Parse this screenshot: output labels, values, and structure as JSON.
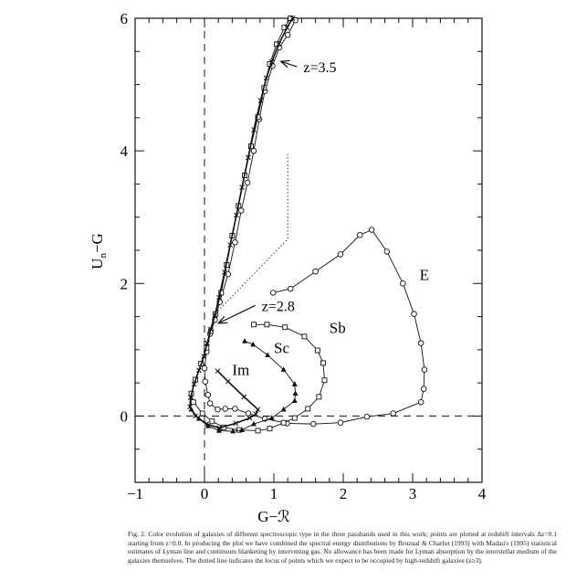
{
  "chart_data": {
    "type": "line",
    "xlabel": "G−ℛ",
    "ylabel_main": "U",
    "ylabel_sub": "n",
    "ylabel_rest": "−G",
    "xlim": [
      -1,
      4
    ],
    "ylim": [
      -1,
      6
    ],
    "x_ticks": [
      "-1",
      "0",
      "1",
      "2",
      "3",
      "4"
    ],
    "y_ticks": [
      "0",
      "2",
      "4",
      "6"
    ],
    "grid": false,
    "reference_lines": {
      "dashed_x": 0,
      "dashed_y": 0
    },
    "dotted_locus": [
      [
        0.16,
        1.55
      ],
      [
        1.2,
        2.67
      ],
      [
        1.2,
        3.95
      ]
    ],
    "series": [
      {
        "name": "E",
        "marker": "circle",
        "points": [
          [
            0.99,
            1.86
          ],
          [
            1.24,
            1.92
          ],
          [
            1.6,
            2.18
          ],
          [
            1.96,
            2.44
          ],
          [
            2.24,
            2.73
          ],
          [
            2.41,
            2.81
          ],
          [
            2.63,
            2.48
          ],
          [
            2.86,
            2.0
          ],
          [
            3.02,
            1.54
          ],
          [
            3.12,
            1.1
          ],
          [
            3.17,
            0.7
          ],
          [
            3.16,
            0.41
          ],
          [
            3.12,
            0.21
          ],
          [
            2.72,
            0.04
          ],
          [
            2.34,
            -0.01
          ],
          [
            1.96,
            -0.1
          ],
          [
            1.57,
            -0.12
          ],
          [
            1.19,
            -0.11
          ],
          [
            0.87,
            -0.04
          ],
          [
            0.63,
            0.04
          ],
          [
            0.44,
            0.11
          ],
          [
            0.3,
            0.11
          ],
          [
            0.19,
            0.1
          ],
          [
            0.08,
            0.19
          ],
          [
            0.05,
            0.32
          ],
          [
            0.01,
            0.52
          ],
          [
            0.0,
            0.72
          ],
          [
            0.03,
            0.97
          ],
          [
            0.08,
            1.24
          ],
          [
            0.15,
            1.45
          ],
          [
            0.22,
            1.72
          ],
          [
            0.34,
            2.14
          ],
          [
            0.44,
            2.62
          ],
          [
            0.53,
            3.1
          ],
          [
            0.62,
            3.52
          ],
          [
            0.71,
            4.0
          ],
          [
            0.79,
            4.48
          ],
          [
            0.87,
            4.9
          ],
          [
            0.98,
            5.28
          ],
          [
            1.08,
            5.56
          ],
          [
            1.2,
            5.75
          ],
          [
            1.31,
            5.97
          ]
        ]
      },
      {
        "name": "Sb",
        "marker": "square",
        "points": [
          [
            0.71,
            1.38
          ],
          [
            0.9,
            1.38
          ],
          [
            1.16,
            1.34
          ],
          [
            1.44,
            1.2
          ],
          [
            1.63,
            0.99
          ],
          [
            1.71,
            0.8
          ],
          [
            1.73,
            0.54
          ],
          [
            1.65,
            0.29
          ],
          [
            1.49,
            0.11
          ],
          [
            1.3,
            -0.03
          ],
          [
            1.14,
            -0.1
          ],
          [
            0.94,
            -0.19
          ],
          [
            0.77,
            -0.22
          ],
          [
            0.5,
            -0.21
          ],
          [
            0.28,
            -0.17
          ],
          [
            0.11,
            -0.08
          ],
          [
            -0.03,
            0.04
          ],
          [
            -0.16,
            0.21
          ],
          [
            -0.19,
            0.34
          ],
          [
            -0.13,
            0.55
          ],
          [
            -0.05,
            0.79
          ],
          [
            0.03,
            1.03
          ],
          [
            0.09,
            1.28
          ],
          [
            0.16,
            1.54
          ],
          [
            0.24,
            1.86
          ],
          [
            0.32,
            2.28
          ],
          [
            0.4,
            2.72
          ],
          [
            0.49,
            3.17
          ],
          [
            0.58,
            3.63
          ],
          [
            0.67,
            4.07
          ],
          [
            0.77,
            4.51
          ],
          [
            0.86,
            4.95
          ],
          [
            0.94,
            5.31
          ],
          [
            1.04,
            5.61
          ],
          [
            1.15,
            5.86
          ],
          [
            1.24,
            6.0
          ]
        ]
      },
      {
        "name": "Sc",
        "marker": "triangle",
        "points": [
          [
            0.58,
            1.13
          ],
          [
            0.7,
            1.08
          ],
          [
            0.91,
            0.92
          ],
          [
            1.14,
            0.7
          ],
          [
            1.3,
            0.48
          ],
          [
            1.31,
            0.34
          ],
          [
            1.3,
            0.23
          ],
          [
            1.14,
            0.1
          ],
          [
            0.97,
            -0.03
          ],
          [
            0.71,
            -0.12
          ],
          [
            0.54,
            -0.21
          ],
          [
            0.41,
            -0.23
          ],
          [
            0.21,
            -0.22
          ],
          [
            0.05,
            -0.15
          ],
          [
            -0.08,
            -0.04
          ],
          [
            -0.19,
            0.1
          ]
        ]
      },
      {
        "name": "Im",
        "marker": "cross",
        "points": [
          [
            0.19,
            0.68
          ],
          [
            0.34,
            0.52
          ],
          [
            0.57,
            0.29
          ],
          [
            0.77,
            0.1
          ],
          [
            0.74,
            0.03
          ],
          [
            0.65,
            -0.03
          ],
          [
            0.45,
            -0.11
          ],
          [
            0.21,
            -0.18
          ],
          [
            0.03,
            -0.12
          ],
          [
            -0.13,
            0.0
          ],
          [
            -0.21,
            0.14
          ],
          [
            -0.2,
            0.28
          ],
          [
            -0.15,
            0.48
          ],
          [
            -0.08,
            0.69
          ],
          [
            -0.01,
            0.9
          ],
          [
            0.04,
            1.1
          ],
          [
            0.09,
            1.31
          ],
          [
            0.15,
            1.52
          ],
          [
            0.21,
            1.79
          ],
          [
            0.29,
            2.17
          ],
          [
            0.37,
            2.58
          ],
          [
            0.46,
            3.03
          ],
          [
            0.54,
            3.45
          ],
          [
            0.63,
            3.9
          ],
          [
            0.71,
            4.32
          ],
          [
            0.81,
            4.76
          ],
          [
            0.89,
            5.1
          ],
          [
            0.97,
            5.34
          ],
          [
            1.07,
            5.61
          ],
          [
            1.19,
            5.86
          ],
          [
            1.27,
            6.0
          ]
        ]
      }
    ],
    "annotations": [
      {
        "text": "z=3.5",
        "at": [
          1.4,
          5.2
        ],
        "arrow_to": [
          1.1,
          5.35
        ]
      },
      {
        "text": "z=2.8",
        "at": [
          0.8,
          1.6
        ],
        "arrow_to": [
          0.2,
          1.4
        ]
      }
    ],
    "series_labels": [
      {
        "text": "E",
        "at": [
          3.1,
          2.05
        ]
      },
      {
        "text": "Sb",
        "at": [
          1.8,
          1.25
        ]
      },
      {
        "text": "Sc",
        "at": [
          1.0,
          0.95
        ]
      },
      {
        "text": "Im",
        "at": [
          0.4,
          0.62
        ]
      }
    ]
  },
  "caption": {
    "lines": [
      "Fig. 2. Color evolution of galaxies of different spectroscopic type in the three passbands used in this work; points are plotted at redshift intervals Δz=0.1",
      "starting from z=0.0. In producing the plot we have combined the spectral energy distributions by Bruzual & Charlot (1993) with Madau's (1995) statistical",
      "estimates of Lyman line and continuum blanketing by intervening gas. No allowance has been made for Lyman absorption by the interstellar medium of the",
      "galaxies themselves. The dotted line indicates the locus of points which we expect to be occupied by high-redshift galaxies (z≥3)."
    ]
  }
}
